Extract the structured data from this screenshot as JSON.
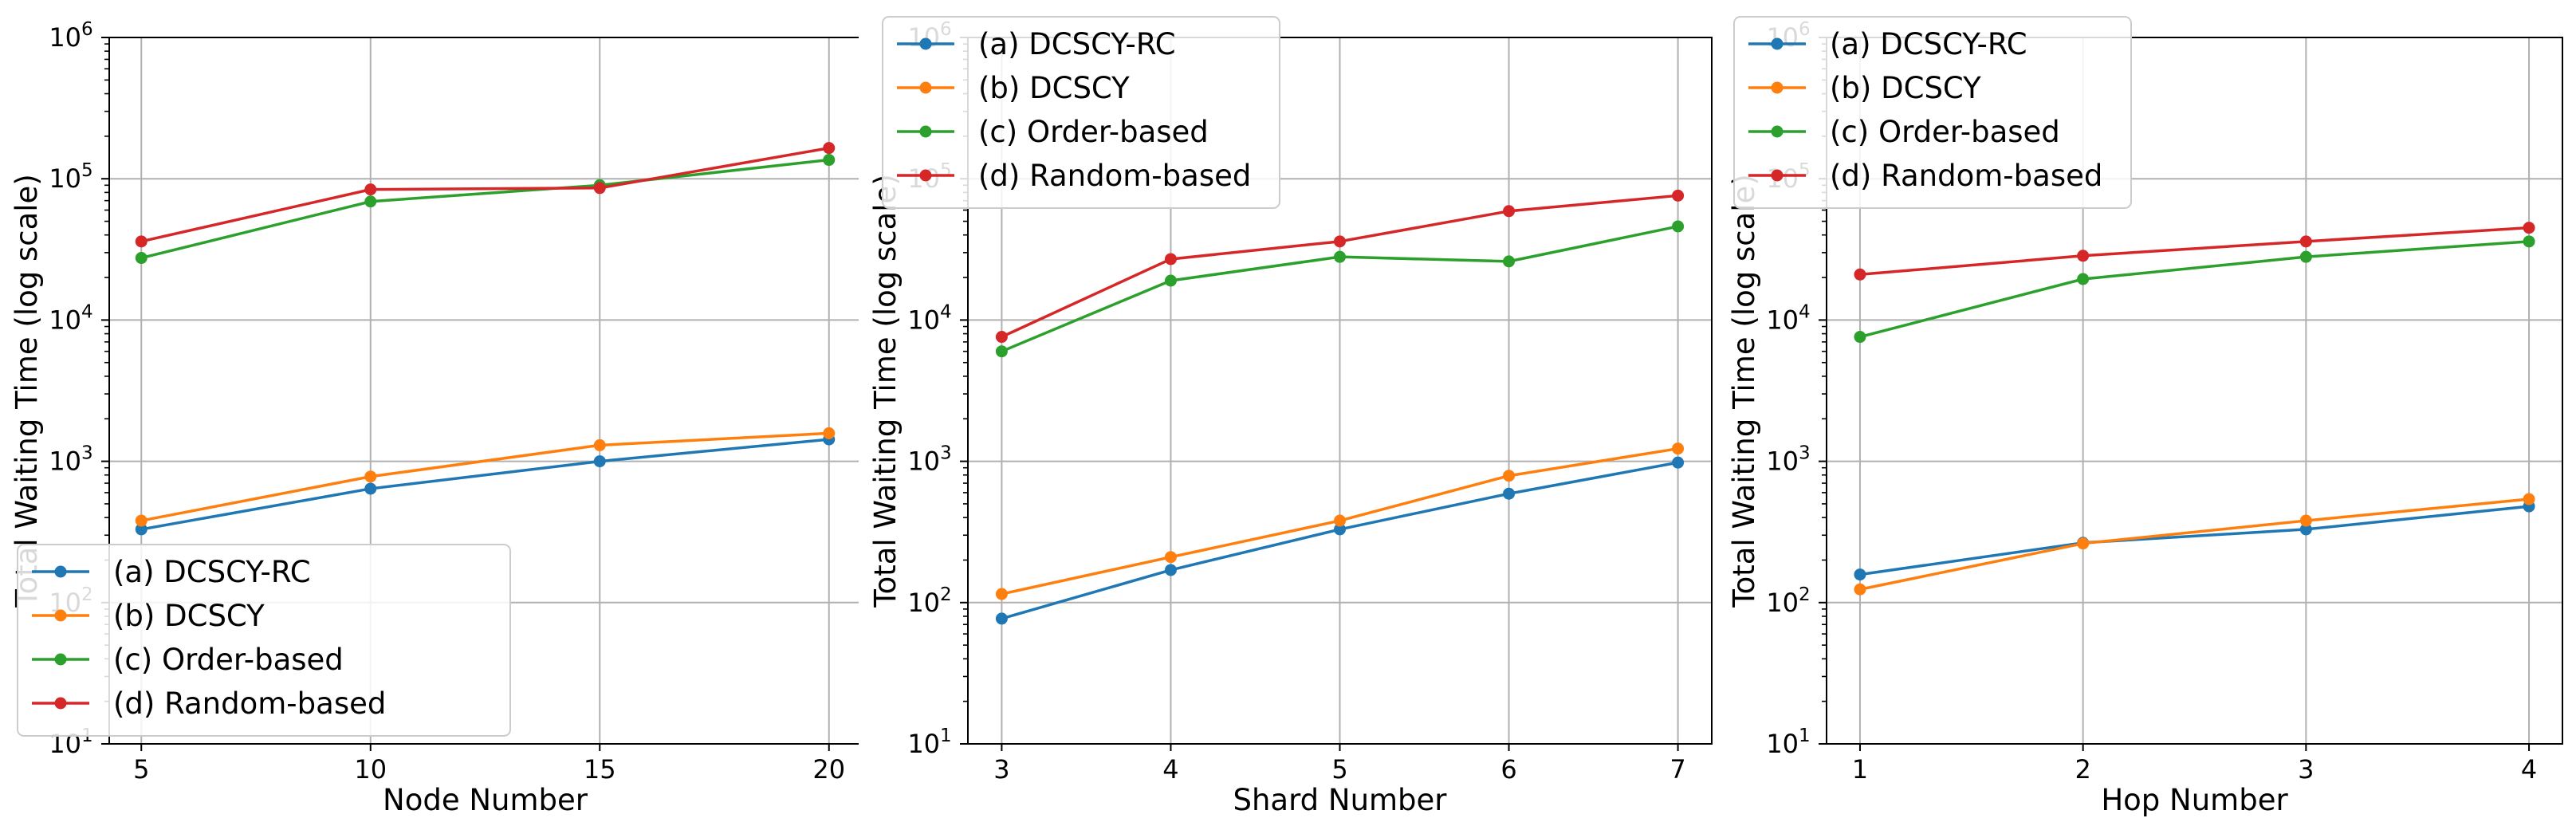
{
  "figure": {
    "ylabel": "Total Waiting Time (log scale)"
  },
  "chart_data": [
    {
      "type": "line",
      "xlabel": "Node Number",
      "ylabel": "Total Waiting Time (log scale)",
      "yscale": "log",
      "ylim": [
        10,
        1000000
      ],
      "x_ticks": [
        5,
        10,
        15,
        20
      ],
      "x_tick_labels": [
        "5",
        "10",
        "15",
        "20"
      ],
      "xlim": [
        4.3,
        20.7
      ],
      "grid": true,
      "legend_position": "lower-left",
      "series": [
        {
          "name": "(a) DCSCY-RC",
          "color": "#1f77b4",
          "x": [
            5,
            10,
            15,
            20
          ],
          "values": [
            330,
            640,
            1000,
            1430
          ]
        },
        {
          "name": "(b) DCSCY",
          "color": "#ff7f0e",
          "x": [
            5,
            10,
            15,
            20
          ],
          "values": [
            380,
            780,
            1300,
            1580
          ]
        },
        {
          "name": "(c) Order-based",
          "color": "#2ca02c",
          "x": [
            5,
            10,
            15,
            20
          ],
          "values": [
            27500,
            69000,
            90000,
            136000
          ]
        },
        {
          "name": "(d) Random-based",
          "color": "#d62728",
          "x": [
            5,
            10,
            15,
            20
          ],
          "values": [
            36000,
            84000,
            86000,
            165000
          ]
        }
      ]
    },
    {
      "type": "line",
      "xlabel": "Shard Number",
      "ylabel": "Total Waiting Time (log scale)",
      "yscale": "log",
      "ylim": [
        10,
        1000000
      ],
      "x_ticks": [
        3,
        4,
        5,
        6,
        7
      ],
      "x_tick_labels": [
        "3",
        "4",
        "5",
        "6",
        "7"
      ],
      "xlim": [
        2.8,
        7.2
      ],
      "grid": true,
      "legend_position": "top-left",
      "series": [
        {
          "name": "(a) DCSCY-RC",
          "color": "#1f77b4",
          "x": [
            3,
            4,
            5,
            6,
            7
          ],
          "values": [
            77,
            170,
            330,
            590,
            980
          ]
        },
        {
          "name": "(b) DCSCY",
          "color": "#ff7f0e",
          "x": [
            3,
            4,
            5,
            6,
            7
          ],
          "values": [
            115,
            210,
            380,
            790,
            1230
          ]
        },
        {
          "name": "(c) Order-based",
          "color": "#2ca02c",
          "x": [
            3,
            4,
            5,
            6,
            7
          ],
          "values": [
            6000,
            19000,
            28000,
            26000,
            46000
          ]
        },
        {
          "name": "(d) Random-based",
          "color": "#d62728",
          "x": [
            3,
            4,
            5,
            6,
            7
          ],
          "values": [
            7600,
            27000,
            36000,
            59000,
            76000
          ]
        }
      ]
    },
    {
      "type": "line",
      "xlabel": "Hop Number",
      "ylabel": "Total Waiting Time (log scale)",
      "yscale": "log",
      "ylim": [
        10,
        1000000
      ],
      "x_ticks": [
        1,
        2,
        3,
        4
      ],
      "x_tick_labels": [
        "1",
        "2",
        "3",
        "4"
      ],
      "xlim": [
        0.85,
        4.15
      ],
      "grid": true,
      "legend_position": "top-left",
      "series": [
        {
          "name": "(a) DCSCY-RC",
          "color": "#1f77b4",
          "x": [
            1,
            2,
            3,
            4
          ],
          "values": [
            158,
            265,
            330,
            480
          ]
        },
        {
          "name": "(b) DCSCY",
          "color": "#ff7f0e",
          "x": [
            1,
            2,
            3,
            4
          ],
          "values": [
            124,
            262,
            380,
            540
          ]
        },
        {
          "name": "(c) Order-based",
          "color": "#2ca02c",
          "x": [
            1,
            2,
            3,
            4
          ],
          "values": [
            7600,
            19500,
            28000,
            36000
          ]
        },
        {
          "name": "(d) Random-based",
          "color": "#d62728",
          "x": [
            1,
            2,
            3,
            4
          ],
          "values": [
            21000,
            28500,
            36000,
            45000
          ]
        }
      ]
    }
  ]
}
